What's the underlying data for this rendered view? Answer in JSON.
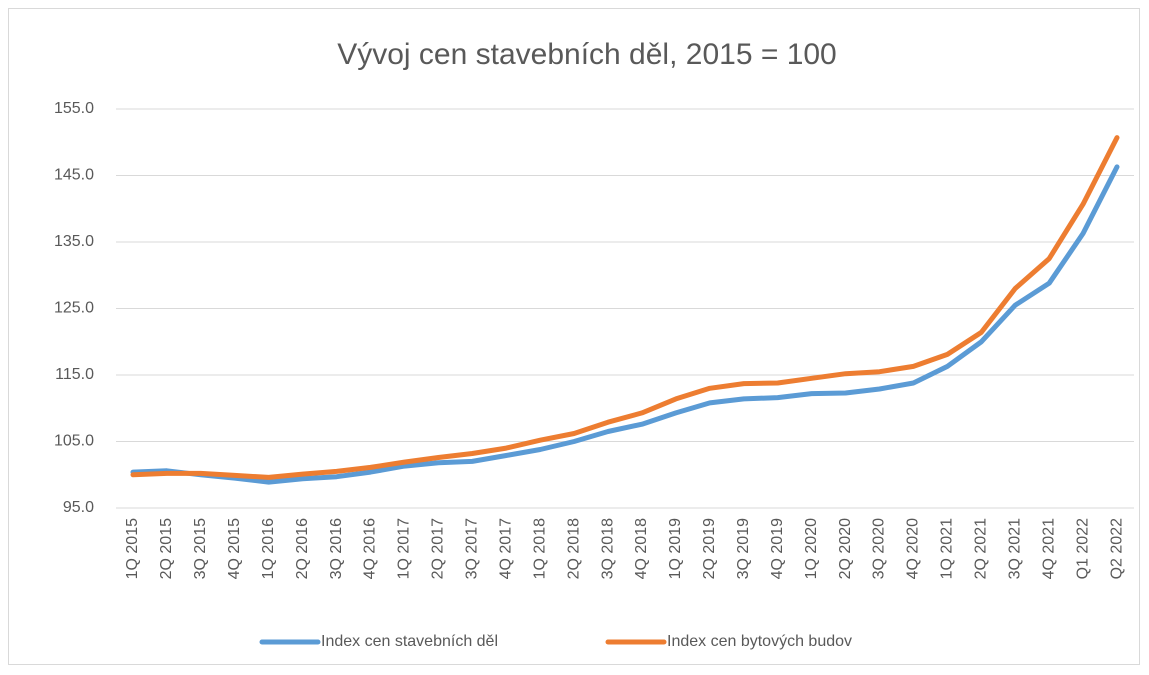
{
  "chart_data": {
    "type": "line",
    "title": "Vývoj cen stavebních děl, 2015 = 100",
    "categories": [
      "1Q 2015",
      "2Q 2015",
      "3Q 2015",
      "4Q 2015",
      "1Q 2016",
      "2Q 2016",
      "3Q 2016",
      "4Q 2016",
      "1Q 2017",
      "2Q 2017",
      "3Q 2017",
      "4Q 2017",
      "1Q 2018",
      "2Q 2018",
      "3Q 2018",
      "4Q 2018",
      "1Q 2019",
      "2Q 2019",
      "3Q 2019",
      "4Q 2019",
      "1Q 2020",
      "2Q 2020",
      "3Q 2020",
      "4Q 2020",
      "1Q 2021",
      "2Q 2021",
      "3Q 2021",
      "4Q 2021",
      "Q1 2022",
      "Q2 2022"
    ],
    "series": [
      {
        "name": "Index cen stavebních děl",
        "color": "#5b9bd5",
        "values": [
          100.4,
          100.6,
          100.0,
          99.5,
          98.9,
          99.4,
          99.7,
          100.4,
          101.3,
          101.8,
          102.0,
          102.9,
          103.8,
          105.0,
          106.5,
          107.6,
          109.3,
          110.8,
          111.4,
          111.6,
          112.2,
          112.3,
          112.9,
          113.8,
          116.3,
          120.0,
          125.5,
          128.8,
          136.3,
          146.3
        ]
      },
      {
        "name": "Index cen bytových budov",
        "color": "#ed7d31",
        "values": [
          100.0,
          100.2,
          100.2,
          99.9,
          99.6,
          100.1,
          100.5,
          101.1,
          101.9,
          102.6,
          103.2,
          104.0,
          105.2,
          106.2,
          107.9,
          109.3,
          111.4,
          113.0,
          113.7,
          113.8,
          114.5,
          115.2,
          115.5,
          116.3,
          118.1,
          121.4,
          128.0,
          132.5,
          140.7,
          150.7
        ]
      }
    ],
    "ylim": [
      95,
      155
    ],
    "yticks": [
      {
        "value": 95,
        "label": "95.0"
      },
      {
        "value": 105,
        "label": "105.0"
      },
      {
        "value": 115,
        "label": "115.0"
      },
      {
        "value": 125,
        "label": "125.0"
      },
      {
        "value": 135,
        "label": "135.0"
      },
      {
        "value": 145,
        "label": "145.0"
      },
      {
        "value": 155,
        "label": "155.0"
      }
    ],
    "grid": true,
    "legend": "bottom"
  }
}
